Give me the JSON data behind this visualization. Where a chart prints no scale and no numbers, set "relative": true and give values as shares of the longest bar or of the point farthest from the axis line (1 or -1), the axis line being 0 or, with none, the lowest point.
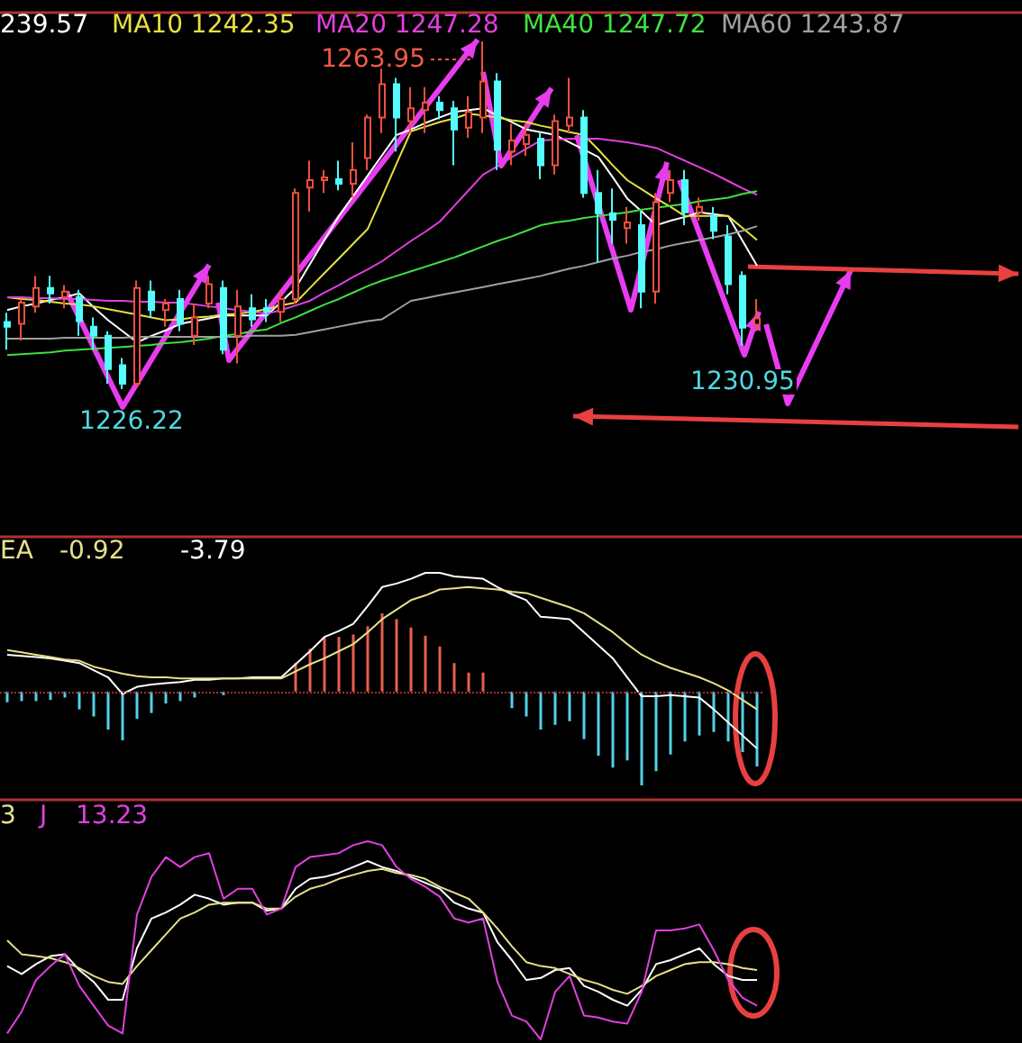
{
  "chart_data": [
    {
      "type": "candlestick",
      "tick_labels": false,
      "annotations": [
        "239.57",
        "1263.95",
        "1226.22",
        "1230.95"
      ],
      "categories": [
        null,
        null,
        null,
        null,
        null,
        null,
        null,
        null,
        null,
        null,
        null,
        null,
        null,
        null,
        null,
        null,
        null,
        null,
        null,
        null,
        null,
        null,
        null,
        null,
        null,
        null,
        null,
        null,
        null,
        null,
        null,
        null,
        null,
        null,
        null,
        null,
        null,
        null,
        null,
        null,
        null,
        null,
        null,
        null,
        null,
        null,
        null,
        null,
        null,
        null,
        null,
        null,
        null
      ],
      "series": [
        {
          "ohlc": [
            [
              1233.5,
              1234.5,
              1230.5,
              1233.0
            ],
            [
              1233.3,
              1236.0,
              1231.5,
              1235.6
            ],
            [
              1235.2,
              1238.5,
              1234.5,
              1237.2
            ],
            [
              1237.2,
              1238.5,
              1235.5,
              1236.6
            ],
            [
              1236.2,
              1237.5,
              1235.0,
              1236.8
            ],
            [
              1236.2,
              1237.0,
              1232.0,
              1233.6
            ],
            [
              1233.0,
              1234.0,
              1230.5,
              1232.0
            ],
            [
              1232.0,
              1232.5,
              1226.8,
              1228.4
            ],
            [
              1228.8,
              1229.6,
              1226.22,
              1226.8
            ],
            [
              1226.8,
              1238.0,
              1226.5,
              1237.2
            ],
            [
              1236.8,
              1238.0,
              1234.0,
              1234.8
            ],
            [
              1234.8,
              1236.0,
              1233.0,
              1235.5
            ],
            [
              1236.0,
              1237.0,
              1232.5,
              1233.3
            ],
            [
              1232.0,
              1235.5,
              1231.0,
              1234.0
            ],
            [
              1235.5,
              1238.5,
              1235.0,
              1237.6
            ],
            [
              1237.2,
              1238.0,
              1230.0,
              1230.5
            ],
            [
              1232.0,
              1237.0,
              1229.0,
              1235.2
            ],
            [
              1235.0,
              1236.5,
              1233.0,
              1233.8
            ],
            [
              1235.0,
              1236.0,
              1233.5,
              1234.6
            ],
            [
              1234.6,
              1237.0,
              1233.5,
              1236.0
            ],
            [
              1236.0,
              1248.0,
              1235.5,
              1247.5
            ],
            [
              1248.1,
              1251.0,
              1245.5,
              1248.9
            ],
            [
              1248.9,
              1250.0,
              1247.5,
              1249.2
            ],
            [
              1249.0,
              1251.0,
              1247.8,
              1248.5
            ],
            [
              1248.5,
              1253.0,
              1247.0,
              1250.0
            ],
            [
              1251.3,
              1256.0,
              1250.0,
              1255.7
            ],
            [
              1255.7,
              1261.0,
              1254.0,
              1259.3
            ],
            [
              1259.3,
              1260.0,
              1252.0,
              1255.7
            ],
            [
              1255.3,
              1259.0,
              1254.0,
              1256.7
            ],
            [
              1256.5,
              1259.0,
              1254.0,
              1257.3
            ],
            [
              1257.3,
              1258.0,
              1255.5,
              1256.5
            ],
            [
              1256.7,
              1257.5,
              1250.5,
              1254.4
            ],
            [
              1254.6,
              1258.0,
              1253.5,
              1256.3
            ],
            [
              1255.7,
              1263.95,
              1254.0,
              1259.6
            ],
            [
              1259.6,
              1260.5,
              1250.0,
              1252.2
            ],
            [
              1252.0,
              1255.0,
              1250.5,
              1253.2
            ],
            [
              1252.8,
              1255.0,
              1251.5,
              1253.8
            ],
            [
              1253.4,
              1254.0,
              1249.0,
              1250.5
            ],
            [
              1250.5,
              1256.0,
              1249.5,
              1255.3
            ],
            [
              1254.8,
              1260.0,
              1254.0,
              1255.7
            ],
            [
              1255.7,
              1256.5,
              1247.0,
              1247.5
            ],
            [
              1247.5,
              1250.0,
              1240.0,
              1245.3
            ],
            [
              1245.3,
              1248.0,
              1242.0,
              1244.6
            ],
            [
              1243.7,
              1246.0,
              1242.0,
              1244.3
            ],
            [
              1244.0,
              1245.5,
              1235.0,
              1236.8
            ],
            [
              1236.8,
              1247.5,
              1235.5,
              1246.5
            ],
            [
              1247.5,
              1250.0,
              1246.5,
              1248.9
            ],
            [
              1248.9,
              1250.0,
              1244.0,
              1245.4
            ],
            [
              1245.4,
              1247.0,
              1244.5,
              1246.0
            ],
            [
              1245.0,
              1246.0,
              1242.5,
              1243.4
            ],
            [
              1242.8,
              1244.0,
              1236.5,
              1237.6
            ],
            [
              1238.5,
              1239.0,
              1230.95,
              1232.9
            ],
            [
              1233.2,
              1236.0,
              1232.5,
              1233.9
            ]
          ],
          "colors": [
            "#54fcfc",
            "#f0503c",
            "#f0503c",
            "#54fcfc",
            "#f0503c",
            "#54fcfc",
            "#54fcfc",
            "#54fcfc",
            "#54fcfc",
            "#f0503c",
            "#54fcfc",
            "#f0503c",
            "#54fcfc",
            "#f0503c",
            "#f0503c",
            "#54fcfc",
            "#f0503c",
            "#54fcfc",
            "#54fcfc",
            "#f0503c",
            "#f0503c",
            "#f0503c",
            "#f0503c",
            "#54fcfc",
            "#f0503c",
            "#f0503c",
            "#f0503c",
            "#54fcfc",
            "#f0503c",
            "#f0503c",
            "#54fcfc",
            "#54fcfc",
            "#f0503c",
            "#f0503c",
            "#54fcfc",
            "#f0503c",
            "#f0503c",
            "#54fcfc",
            "#f0503c",
            "#f0503c",
            "#54fcfc",
            "#54fcfc",
            "#54fcfc",
            "#f0503c",
            "#54fcfc",
            "#f0503c",
            "#f0503c",
            "#54fcfc",
            "#f0503c",
            "#54fcfc",
            "#54fcfc",
            "#54fcfc",
            "#f0503c"
          ]
        },
        {
          "type": "line",
          "color": "#ffffff",
          "values": [
            1234.8,
            1235.2,
            1235.5,
            1235.9,
            1236.2,
            1236.6,
            1235.1,
            1233.7,
            1232.5,
            1231.3,
            1232.0,
            1232.6,
            1233.3,
            1233.6,
            1233.9,
            1234.2,
            1234.2,
            1234.2,
            1234.2,
            1235.7,
            1237.2,
            1239.8,
            1242.4,
            1245.0,
            1247.2,
            1249.4,
            1251.6,
            1253.8,
            1254.4,
            1255.1,
            1255.7,
            1256.3,
            1256.5,
            1256.7,
            1255.9,
            1255.2,
            1254.4,
            1254.1,
            1253.8,
            1253.0,
            1252.2,
            1251.4,
            1249.2,
            1246.9,
            1245.5,
            1244.0,
            1244.5,
            1244.9,
            1245.4,
            1245.2,
            1245.0,
            1242.3,
            1239.6
          ]
        },
        {
          "type": "line",
          "name": "MA10 1242.35",
          "color": "#e6e040",
          "values": [
            1236.2,
            1236.0,
            1235.9,
            1235.7,
            1235.5,
            1235.4,
            1235.2,
            1234.9,
            1234.6,
            1234.3,
            1234.0,
            1233.7,
            1233.8,
            1234.0,
            1234.1,
            1234.3,
            1234.4,
            1234.6,
            1234.9,
            1235.3,
            1235.6,
            1237.2,
            1238.8,
            1240.4,
            1242.0,
            1243.6,
            1247.1,
            1250.7,
            1254.2,
            1254.7,
            1255.2,
            1255.6,
            1256.1,
            1255.9,
            1255.7,
            1255.4,
            1255.2,
            1254.8,
            1254.5,
            1254.1,
            1253.8,
            1252.2,
            1250.5,
            1248.9,
            1247.9,
            1246.9,
            1246.0,
            1245.0,
            1245.0,
            1245.0,
            1245.0,
            1243.7,
            1242.4
          ]
        },
        {
          "type": "line",
          "name": "MA20 1247.28",
          "color": "#e040e0",
          "values": [
            1236.2,
            1236.2,
            1236.1,
            1236.1,
            1236.0,
            1236.0,
            1235.9,
            1235.8,
            1235.8,
            1235.7,
            1235.7,
            1235.6,
            1235.6,
            1235.4,
            1235.2,
            1235.0,
            1234.8,
            1234.6,
            1234.4,
            1234.8,
            1235.3,
            1235.8,
            1236.7,
            1237.5,
            1238.4,
            1239.2,
            1240.1,
            1241.2,
            1242.3,
            1243.3,
            1244.4,
            1246.1,
            1247.8,
            1249.5,
            1250.4,
            1251.4,
            1252.3,
            1253.2,
            1253.3,
            1253.4,
            1253.4,
            1253.4,
            1253.2,
            1253.0,
            1252.7,
            1252.4,
            1251.7,
            1251.0,
            1250.3,
            1249.6,
            1248.8,
            1248.0,
            1247.3
          ]
        },
        {
          "type": "line",
          "name": "MA40 1247.72",
          "color": "#40e040",
          "values": [
            1229.9,
            1230.0,
            1230.1,
            1230.2,
            1230.4,
            1230.5,
            1230.6,
            1230.7,
            1230.8,
            1230.9,
            1231.0,
            1231.2,
            1231.3,
            1231.5,
            1231.7,
            1232.0,
            1232.2,
            1232.5,
            1232.7,
            1233.4,
            1234.0,
            1234.7,
            1235.4,
            1236.0,
            1236.7,
            1237.4,
            1238.0,
            1238.5,
            1239.0,
            1239.5,
            1240.0,
            1240.5,
            1241.1,
            1241.7,
            1242.3,
            1242.8,
            1243.4,
            1244.0,
            1244.3,
            1244.5,
            1244.8,
            1245.0,
            1245.2,
            1245.4,
            1245.7,
            1245.9,
            1246.1,
            1246.3,
            1246.6,
            1246.8,
            1247.0,
            1247.4,
            1247.7
          ]
        },
        {
          "type": "line",
          "name": "MA60 1243.87",
          "color": "#a0a0a0",
          "values": [
            1231.7,
            1231.7,
            1231.7,
            1231.7,
            1231.8,
            1231.8,
            1231.8,
            1231.8,
            1231.8,
            1231.9,
            1231.9,
            1231.9,
            1231.9,
            1231.9,
            1231.9,
            1231.9,
            1231.9,
            1232.0,
            1232.0,
            1232.0,
            1232.1,
            1232.4,
            1232.7,
            1233.0,
            1233.3,
            1233.6,
            1233.8,
            1234.8,
            1235.8,
            1236.1,
            1236.4,
            1236.7,
            1237.0,
            1237.3,
            1237.6,
            1237.9,
            1238.2,
            1238.5,
            1238.9,
            1239.3,
            1239.6,
            1240.0,
            1240.4,
            1240.7,
            1241.1,
            1241.4,
            1241.8,
            1242.1,
            1242.4,
            1242.7,
            1243.0,
            1243.4,
            1243.9
          ]
        }
      ]
    },
    {
      "type": "bar",
      "relative": true,
      "tick_labels": false,
      "ref_lines": [
        {
          "axis": "y",
          "value": 0,
          "color": "#a03030",
          "line_style": "dotted"
        }
      ],
      "annotations": [
        "EA",
        "-0.92",
        "-3.79"
      ],
      "categories": [
        null,
        null,
        null,
        null,
        null,
        null,
        null,
        null,
        null,
        null,
        null,
        null,
        null,
        null,
        null,
        null,
        null,
        null,
        null,
        null,
        null,
        null,
        null,
        null,
        null,
        null,
        null,
        null,
        null,
        null,
        null,
        null,
        null,
        null,
        null,
        null,
        null,
        null,
        null,
        null,
        null,
        null,
        null,
        null,
        null,
        null,
        null,
        null,
        null,
        null,
        null,
        null,
        null
      ],
      "series": [
        {
          "values": [
            -0.09,
            -0.08,
            -0.08,
            -0.07,
            -0.05,
            -0.15,
            -0.21,
            -0.32,
            -0.41,
            -0.23,
            -0.18,
            -0.1,
            -0.08,
            -0.05,
            null,
            -0.03,
            null,
            0,
            0,
            0,
            0.24,
            0.36,
            0.46,
            0.46,
            0.48,
            0.55,
            0.66,
            0.61,
            0.54,
            0.47,
            0.38,
            0.24,
            0.16,
            0.16,
            0,
            -0.14,
            -0.21,
            -0.32,
            -0.28,
            -0.25,
            -0.4,
            -0.54,
            -0.64,
            -0.58,
            -0.79,
            -0.67,
            -0.53,
            -0.42,
            -0.37,
            -0.34,
            -0.42,
            -0.51,
            -0.63
          ],
          "colors": [
            "#54d0e8",
            "#54d0e8",
            "#54d0e8",
            "#54d0e8",
            "#54d0e8",
            "#54d0e8",
            "#54d0e8",
            "#54d0e8",
            "#54d0e8",
            "#54d0e8",
            "#54d0e8",
            "#54d0e8",
            "#54d0e8",
            "#54d0e8",
            "#54d0e8",
            "#54d0e8",
            "#54d0e8",
            "#54d0e8",
            "#54d0e8",
            "#54d0e8",
            "#e8604c",
            "#e8604c",
            "#e8604c",
            "#e8604c",
            "#e8604c",
            "#e8604c",
            "#e8604c",
            "#e8604c",
            "#e8604c",
            "#e8604c",
            "#e8604c",
            "#e8604c",
            "#e8604c",
            "#e8604c",
            "#54d0e8",
            "#54d0e8",
            "#54d0e8",
            "#54d0e8",
            "#54d0e8",
            "#54d0e8",
            "#54d0e8",
            "#54d0e8",
            "#54d0e8",
            "#54d0e8",
            "#54d0e8",
            "#54d0e8",
            "#54d0e8",
            "#54d0e8",
            "#54d0e8",
            "#54d0e8",
            "#54d0e8",
            "#54d0e8",
            "#54d0e8"
          ]
        },
        {
          "type": "line",
          "color": "#ffffff",
          "values": [
            0.31,
            0.3,
            0.29,
            0.28,
            0.26,
            0.24,
            0.18,
            0.12,
            -0.02,
            0.04,
            0.06,
            0.07,
            0.08,
            0.1,
            0.1,
            0.11,
            0.11,
            0.12,
            0.12,
            0.12,
            0.23,
            0.34,
            0.46,
            0.51,
            0.57,
            0.72,
            0.88,
            0.91,
            0.95,
            1,
            1,
            0.97,
            0.96,
            0.95,
            0.88,
            0.82,
            0.77,
            0.63,
            0.62,
            0.61,
            0.5,
            0.39,
            0.28,
            0.12,
            -0.04,
            -0.04,
            -0.03,
            -0.04,
            -0.05,
            -0.15,
            -0.26,
            -0.37,
            -0.48
          ]
        },
        {
          "type": "line",
          "color": "#e6e08c",
          "values": [
            0.35,
            0.33,
            0.31,
            0.29,
            0.27,
            0.26,
            0.21,
            0.18,
            0.15,
            0.13,
            0.12,
            0.12,
            0.11,
            0.11,
            0.11,
            0.11,
            0.11,
            0.11,
            0.11,
            0.11,
            0.17,
            0.23,
            0.28,
            0.34,
            0.4,
            0.5,
            0.61,
            0.69,
            0.77,
            0.81,
            0.86,
            0.87,
            0.88,
            0.87,
            0.86,
            0.84,
            0.83,
            0.79,
            0.75,
            0.71,
            0.66,
            0.58,
            0.5,
            0.4,
            0.31,
            0.25,
            0.2,
            0.16,
            0.12,
            0.07,
            0.01,
            -0.07,
            -0.15
          ]
        }
      ]
    },
    {
      "type": "line",
      "relative": true,
      "tick_labels": false,
      "annotations": [
        "3",
        "13.23"
      ],
      "categories": [
        null,
        null,
        null,
        null,
        null,
        null,
        null,
        null,
        null,
        null,
        null,
        null,
        null,
        null,
        null,
        null,
        null,
        null,
        null,
        null,
        null,
        null,
        null,
        null,
        null,
        null,
        null,
        null,
        null,
        null,
        null,
        null,
        null,
        null,
        null,
        null,
        null,
        null,
        null,
        null,
        null,
        null,
        null,
        null,
        null,
        null,
        null,
        null,
        null,
        null,
        null,
        null,
        null
      ],
      "series": [
        {
          "color": "#ffffff",
          "values": [
            0.37,
            0.33,
            0.38,
            0.42,
            0.43,
            0.35,
            0.29,
            0.2,
            0.2,
            0.46,
            0.61,
            0.64,
            0.68,
            0.73,
            0.71,
            0.68,
            0.69,
            0.69,
            0.65,
            0.66,
            0.76,
            0.81,
            0.82,
            0.84,
            0.87,
            0.9,
            0.87,
            0.85,
            0.82,
            0.79,
            0.76,
            0.69,
            0.66,
            0.64,
            0.49,
            0.4,
            0.3,
            0.31,
            0.35,
            0.36,
            0.27,
            0.24,
            0.2,
            0.17,
            0.25,
            0.38,
            0.4,
            0.43,
            0.46,
            0.38,
            0.32,
            0.3,
            0.3
          ]
        },
        {
          "color": "#e6e08c",
          "values": [
            0.5,
            0.43,
            0.42,
            0.41,
            0.39,
            0.36,
            0.32,
            0.29,
            0.28,
            0.37,
            0.45,
            0.53,
            0.61,
            0.64,
            0.68,
            0.69,
            0.69,
            0.69,
            0.66,
            0.66,
            0.72,
            0.76,
            0.78,
            0.81,
            0.83,
            0.85,
            0.86,
            0.84,
            0.83,
            0.81,
            0.77,
            0.74,
            0.71,
            0.64,
            0.56,
            0.47,
            0.39,
            0.37,
            0.36,
            0.33,
            0.3,
            0.28,
            0.25,
            0.23,
            0.27,
            0.32,
            0.35,
            0.38,
            0.39,
            0.39,
            0.38,
            0.36,
            0.35
          ]
        },
        {
          "name": "J",
          "color": "#e040e0",
          "values": [
            0.03,
            0.14,
            0.3,
            0.37,
            0.43,
            0.27,
            0.17,
            0.07,
            0.03,
            0.63,
            0.82,
            0.92,
            0.87,
            0.92,
            0.94,
            0.71,
            0.76,
            0.76,
            0.63,
            0.66,
            0.87,
            0.92,
            0.93,
            0.94,
            0.98,
            1,
            0.98,
            0.87,
            0.81,
            0.77,
            0.72,
            0.61,
            0.59,
            0.61,
            0.29,
            0.12,
            0.09,
            0,
            0.24,
            0.32,
            0.12,
            0.11,
            0.09,
            0.08,
            0.24,
            0.55,
            0.55,
            0.56,
            0.58,
            0.45,
            0.3,
            0.21,
            0.17
          ]
        }
      ]
    }
  ]
}
